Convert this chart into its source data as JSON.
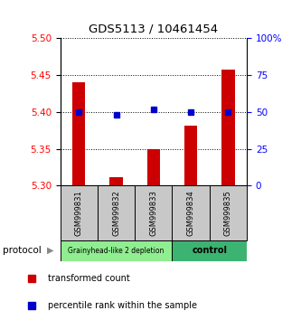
{
  "title": "GDS5113 / 10461454",
  "samples": [
    "GSM999831",
    "GSM999832",
    "GSM999833",
    "GSM999834",
    "GSM999835"
  ],
  "red_values": [
    5.441,
    5.312,
    5.35,
    5.382,
    5.457
  ],
  "blue_pct": [
    50,
    48,
    52,
    50,
    50
  ],
  "ymin": 5.3,
  "ymax": 5.5,
  "yticks_left": [
    5.3,
    5.35,
    5.4,
    5.45,
    5.5
  ],
  "yticks_right": [
    0,
    25,
    50,
    75,
    100
  ],
  "group1_label": "Grainyhead-like 2 depletion",
  "group2_label": "control",
  "group1_color": "#90EE90",
  "group2_color": "#3CB371",
  "protocol_label": "protocol",
  "legend_red_label": "transformed count",
  "legend_blue_label": "percentile rank within the sample",
  "bar_color": "#CC0000",
  "dot_color": "#0000CC",
  "bar_bottom": 5.3,
  "grid_dotted_at": [
    5.35,
    5.4,
    5.45,
    5.5
  ]
}
